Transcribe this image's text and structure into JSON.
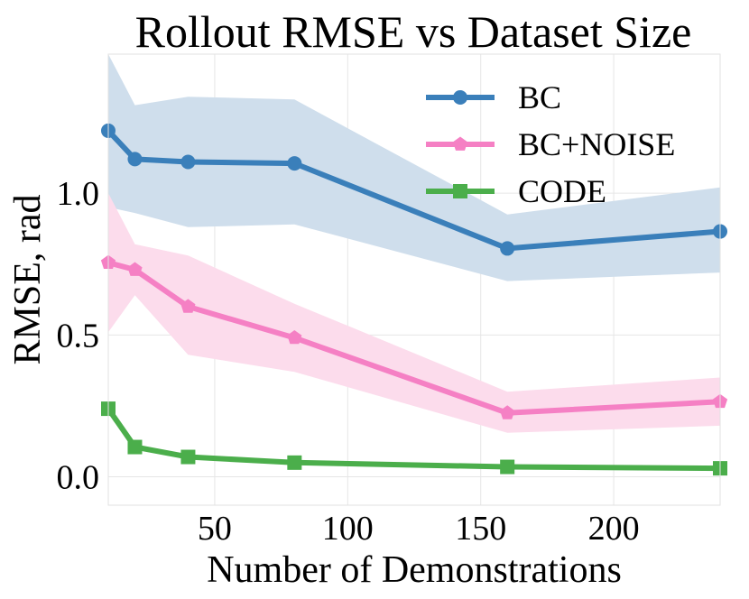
{
  "chart_data": {
    "type": "line",
    "title": "Rollout RMSE vs Dataset Size",
    "xlabel": "Number of Demonstrations",
    "ylabel": "RMSE, rad",
    "xlim": [
      10,
      240
    ],
    "ylim": [
      -0.1,
      1.49
    ],
    "grid": true,
    "legend_position": "top-right",
    "x_ticks": [
      {
        "value": 50,
        "label": "50"
      },
      {
        "value": 100,
        "label": "100"
      },
      {
        "value": 150,
        "label": "150"
      },
      {
        "value": 200,
        "label": "200"
      }
    ],
    "y_ticks": [
      {
        "value": 0.0,
        "label": "0.0"
      },
      {
        "value": 0.5,
        "label": "0.5"
      },
      {
        "value": 1.0,
        "label": "1.0"
      }
    ],
    "x": [
      10,
      20,
      40,
      80,
      160,
      240
    ],
    "series": [
      {
        "name": "BC",
        "color": "#3a7fba",
        "band_color": "#cfdeec",
        "marker": "circle",
        "values": [
          1.22,
          1.12,
          1.11,
          1.105,
          0.805,
          0.865
        ],
        "upper": [
          1.49,
          1.31,
          1.34,
          1.33,
          0.925,
          1.02
        ],
        "lower": [
          0.95,
          0.93,
          0.88,
          0.89,
          0.69,
          0.72
        ]
      },
      {
        "name": "BC+NOISE",
        "color": "#f580c4",
        "band_color": "#fcdcec",
        "marker": "pentagon",
        "values": [
          0.755,
          0.73,
          0.6,
          0.49,
          0.225,
          0.265
        ],
        "upper": [
          1.0,
          0.82,
          0.78,
          0.61,
          0.3,
          0.35
        ],
        "lower": [
          0.51,
          0.64,
          0.43,
          0.37,
          0.155,
          0.18
        ]
      },
      {
        "name": "CODE",
        "color": "#4bae4b",
        "band_color": "#d8efd8",
        "marker": "square",
        "values": [
          0.24,
          0.105,
          0.07,
          0.05,
          0.035,
          0.03
        ],
        "upper": [
          0.24,
          0.105,
          0.07,
          0.05,
          0.035,
          0.03
        ],
        "lower": [
          0.24,
          0.105,
          0.07,
          0.05,
          0.035,
          0.03
        ]
      }
    ]
  }
}
